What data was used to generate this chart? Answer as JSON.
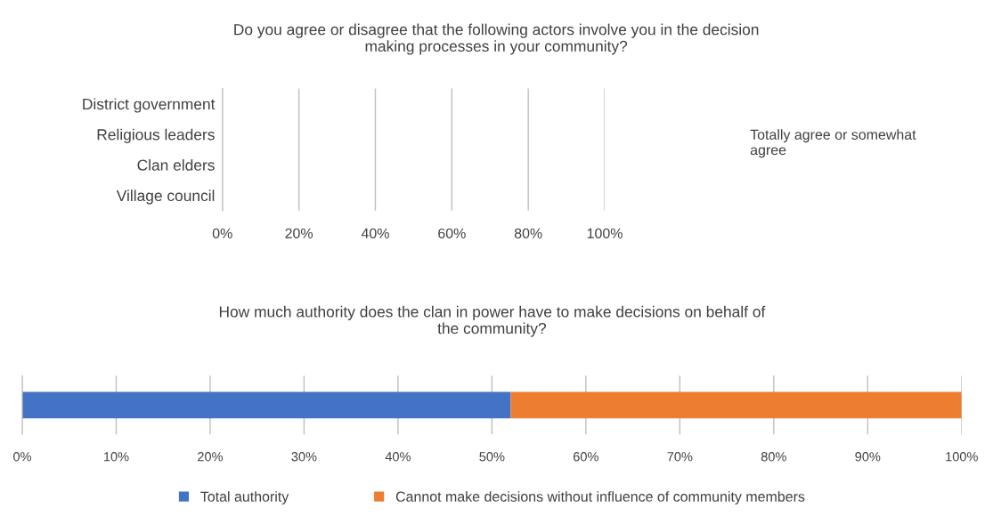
{
  "chart_data": [
    {
      "type": "bar",
      "orientation": "horizontal",
      "title": "Do you agree or disagree that the following actors involve you in the decision\nmaking processes in your community?",
      "categories": [
        "District government",
        "Religious leaders",
        "Clan elders",
        "Village council"
      ],
      "series": [
        {
          "name": "Totally agree or somewhat\nagree",
          "values": [
            null,
            null,
            null,
            null
          ]
        }
      ],
      "xlim": [
        0,
        100
      ],
      "xticks": [
        {
          "value": 0,
          "label": "0%"
        },
        {
          "value": 20,
          "label": "20%"
        },
        {
          "value": 40,
          "label": "40%"
        },
        {
          "value": 60,
          "label": "60%"
        },
        {
          "value": 80,
          "label": "80%"
        },
        {
          "value": 100,
          "label": "100%"
        }
      ],
      "grid": "x"
    },
    {
      "type": "bar",
      "orientation": "horizontal",
      "stacked": true,
      "title": "How much authority does the clan in power have to make decisions on behalf of\nthe community?",
      "categories": [
        null
      ],
      "series": [
        {
          "name": "Total authority",
          "color": "#4472c4",
          "values": [
            52
          ]
        },
        {
          "name": "Cannot make decisions without influence of community members",
          "color": "#ed7d31",
          "values": [
            48
          ]
        }
      ],
      "xlim": [
        0,
        100
      ],
      "xticks": [
        {
          "value": 0,
          "label": "0%"
        },
        {
          "value": 10,
          "label": "10%"
        },
        {
          "value": 20,
          "label": "20%"
        },
        {
          "value": 30,
          "label": "30%"
        },
        {
          "value": 40,
          "label": "40%"
        },
        {
          "value": 50,
          "label": "50%"
        },
        {
          "value": 60,
          "label": "60%"
        },
        {
          "value": 70,
          "label": "70%"
        },
        {
          "value": 80,
          "label": "80%"
        },
        {
          "value": 90,
          "label": "90%"
        },
        {
          "value": 100,
          "label": "100%"
        }
      ],
      "grid": "x",
      "legend": "bottom"
    }
  ]
}
